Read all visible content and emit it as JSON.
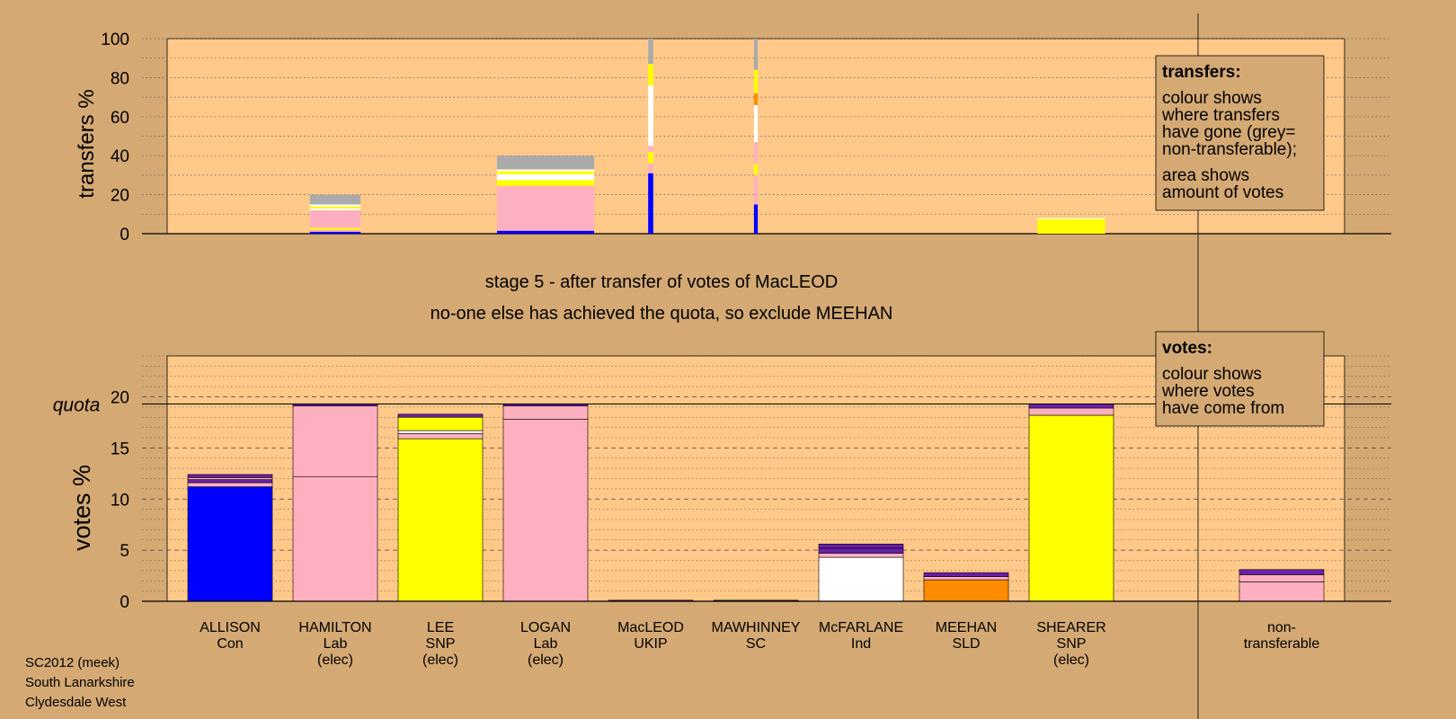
{
  "stage_title": "stage 5 - after transfer of votes of MacLEOD",
  "stage_subtitle": "no-one else has achieved the quota, so exclude MEEHAN",
  "footer": [
    "SC2012 (meek)",
    "South Lanarkshire",
    "Clydesdale West"
  ],
  "legend_transfers": {
    "title": "transfers:",
    "lines": [
      "colour shows",
      "where transfers",
      "have gone (grey=",
      "non-transferable);"
    ],
    "lines2": [
      "area shows",
      "amount of votes"
    ]
  },
  "legend_votes": {
    "title": "votes:",
    "lines": [
      "colour shows",
      "where votes",
      "have come from"
    ]
  },
  "colors": {
    "background": "#d4a973",
    "plot_area": "#ffc98a",
    "Con": "#0000ff",
    "Lab": "#ffb0c0",
    "SNP": "#ffff00",
    "UKIP": "#6a1fa8",
    "SC": "#333333",
    "Ind": "#ffffff",
    "SLD": "#ff8c00",
    "non_transferable": "#aaaaaa"
  },
  "chart_data": [
    {
      "type": "bar",
      "subtype": "stacked",
      "ylabel": "transfers %",
      "ylim": [
        0,
        100
      ],
      "yticks": [
        0,
        20,
        40,
        60,
        80,
        100
      ],
      "grid": "dotted",
      "legend_placement": "top-right",
      "categories": [
        "ALLISON",
        "HAMILTON",
        "LEE",
        "LOGAN",
        "MacLEOD",
        "MAWHINNEY",
        "McFARLANE",
        "MEEHAN",
        "SHEARER",
        "non-transferable"
      ],
      "bars": [
        {
          "category": "HAMILTON",
          "width_fraction": 0.6,
          "segments": [
            {
              "color": "Con",
              "value": 1
            },
            {
              "color": "Lab",
              "value": 1
            },
            {
              "color": "SNP",
              "value": 1
            },
            {
              "color": "Lab",
              "value": 9
            },
            {
              "color": "Ind",
              "value": 1
            },
            {
              "color": "SNP",
              "value": 1
            },
            {
              "color": "Ind",
              "value": 1
            },
            {
              "color": "non_transferable",
              "value": 5
            }
          ]
        },
        {
          "category": "LOGAN",
          "width_fraction": 1.15,
          "segments": [
            {
              "color": "Con",
              "value": 1.5
            },
            {
              "color": "Lab",
              "value": 23
            },
            {
              "color": "SNP",
              "value": 3
            },
            {
              "color": "Ind",
              "value": 3
            },
            {
              "color": "SNP",
              "value": 1.5
            },
            {
              "color": "Ind",
              "value": 1
            },
            {
              "color": "non_transferable",
              "value": 7
            }
          ]
        },
        {
          "category": "MacLEOD",
          "width_fraction": 0.06,
          "segments": [
            {
              "color": "Con",
              "value": 31
            },
            {
              "color": "Lab",
              "value": 5
            },
            {
              "color": "SNP",
              "value": 6
            },
            {
              "color": "Lab",
              "value": 3
            },
            {
              "color": "Ind",
              "value": 31
            },
            {
              "color": "SNP",
              "value": 11
            },
            {
              "color": "non_transferable",
              "value": 13
            }
          ]
        },
        {
          "category": "MAWHINNEY",
          "width_fraction": 0.045,
          "segments": [
            {
              "color": "Con",
              "value": 15
            },
            {
              "color": "Lab",
              "value": 15
            },
            {
              "color": "SNP",
              "value": 6
            },
            {
              "color": "Lab",
              "value": 11
            },
            {
              "color": "Ind",
              "value": 19
            },
            {
              "color": "SLD",
              "value": 6
            },
            {
              "color": "SNP",
              "value": 12
            },
            {
              "color": "non_transferable",
              "value": 16
            }
          ]
        },
        {
          "category": "SHEARER",
          "width_fraction": 0.8,
          "segments": [
            {
              "color": "SNP",
              "value": 7.5
            },
            {
              "color": "Ind",
              "value": 0.5
            }
          ]
        }
      ]
    },
    {
      "type": "bar",
      "subtype": "stacked",
      "ylabel": "votes %",
      "ylim": [
        0,
        24
      ],
      "yticks": [
        0,
        5,
        10,
        15,
        20
      ],
      "quota": 19.3,
      "quota_label": "quota",
      "grid": "dashed",
      "legend_placement": "top-right",
      "candidates": [
        {
          "name": "ALLISON",
          "party": "Con",
          "elec": "",
          "segments": [
            {
              "color": "Con",
              "value": 11.2
            },
            {
              "color": "Lab",
              "value": 0.4
            },
            {
              "color": "UKIP",
              "value": 0.3
            },
            {
              "color": "Lab",
              "value": 0.2
            },
            {
              "color": "UKIP",
              "value": 0.3
            }
          ]
        },
        {
          "name": "HAMILTON",
          "party": "Lab",
          "elec": "(elec)",
          "segments": [
            {
              "color": "Lab",
              "value": 12.2
            },
            {
              "color": "Lab",
              "value": 6.9
            },
            {
              "color": "UKIP",
              "value": 0.2
            }
          ]
        },
        {
          "name": "LEE",
          "party": "SNP",
          "elec": "(elec)",
          "segments": [
            {
              "color": "SNP",
              "value": 15.9
            },
            {
              "color": "Lab",
              "value": 0.5
            },
            {
              "color": "Ind",
              "value": 0.3
            },
            {
              "color": "SNP",
              "value": 1.3
            },
            {
              "color": "UKIP",
              "value": 0.3
            }
          ]
        },
        {
          "name": "LOGAN",
          "party": "Lab",
          "elec": "(elec)",
          "segments": [
            {
              "color": "Lab",
              "value": 17.8
            },
            {
              "color": "Lab",
              "value": 1.3
            },
            {
              "color": "UKIP",
              "value": 0.2
            }
          ]
        },
        {
          "name": "MacLEOD",
          "party": "UKIP",
          "elec": "",
          "segments": [
            {
              "color": "UKIP",
              "value": 0.1
            }
          ]
        },
        {
          "name": "MAWHINNEY",
          "party": "SC",
          "elec": "",
          "segments": [
            {
              "color": "SC",
              "value": 0.1
            }
          ]
        },
        {
          "name": "McFARLANE",
          "party": "Ind",
          "elec": "",
          "segments": [
            {
              "color": "Ind",
              "value": 4.3
            },
            {
              "color": "Lab",
              "value": 0.4
            },
            {
              "color": "UKIP",
              "value": 0.5
            },
            {
              "color": "UKIP",
              "value": 0.4
            }
          ]
        },
        {
          "name": "MEEHAN",
          "party": "SLD",
          "elec": "",
          "segments": [
            {
              "color": "SLD",
              "value": 2.1
            },
            {
              "color": "Lab",
              "value": 0.3
            },
            {
              "color": "UKIP",
              "value": 0.4
            }
          ]
        },
        {
          "name": "SHEARER",
          "party": "SNP",
          "elec": "(elec)",
          "segments": [
            {
              "color": "SNP",
              "value": 18.2
            },
            {
              "color": "Lab",
              "value": 0.7
            },
            {
              "color": "UKIP",
              "value": 0.4
            }
          ]
        },
        {
          "name": "non-",
          "party": "transferable",
          "elec": "",
          "segments": [
            {
              "color": "Lab",
              "value": 1.9
            },
            {
              "color": "Lab",
              "value": 0.7
            },
            {
              "color": "UKIP",
              "value": 0.5
            }
          ]
        }
      ]
    }
  ]
}
